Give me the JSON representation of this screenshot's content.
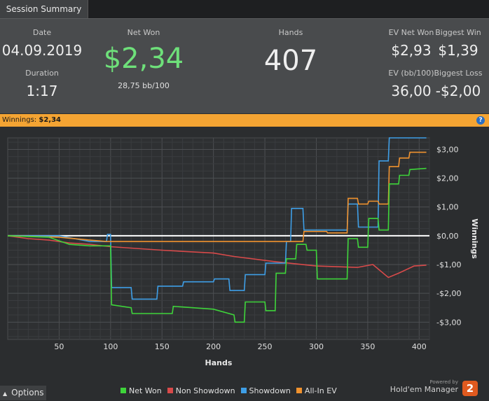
{
  "tab": {
    "label": "Session Summary"
  },
  "summary": {
    "date_label": "Date",
    "date": "04.09.2019",
    "duration_label": "Duration",
    "duration": "1:17",
    "net_won_label": "Net Won",
    "net_won": "$2,34",
    "bb100": "28,75 bb/100",
    "hands_label": "Hands",
    "hands": "407",
    "ev_net_won_label": "EV Net Won",
    "ev_net_won": "$2,93",
    "biggest_win_label": "Biggest Win",
    "biggest_win": "$1,39",
    "ev_bb100_label": "EV (bb/100)",
    "ev_bb100": "36,00",
    "biggest_loss_label": "Biggest Loss",
    "biggest_loss": "-$2,00"
  },
  "banner": {
    "label": "Winnings:",
    "value": "$2,34",
    "help": "?"
  },
  "colors": {
    "net_won": "#3ed43a",
    "non_showdown": "#d84a4a",
    "showdown": "#3e9ee6",
    "all_in_ev": "#f0922e",
    "banner": "#f4a433",
    "accent_green": "#6ee07a"
  },
  "chart_data": {
    "type": "line",
    "xlabel": "Hands",
    "ylabel": "Winnings",
    "xlim": [
      0,
      410
    ],
    "ylim": [
      -3.6,
      3.4
    ],
    "x_ticks": [
      50,
      100,
      150,
      200,
      250,
      300,
      350,
      400
    ],
    "x_tick_labels": [
      "50",
      "100",
      "150",
      "200",
      "250",
      "300",
      "350",
      "400"
    ],
    "y_ticks": [
      3,
      2,
      1,
      0,
      -1,
      -2,
      -3
    ],
    "y_tick_labels": [
      "$3,00",
      "$2,00",
      "$1,00",
      "$0,00",
      "-$1,00",
      "-$2,00",
      "-$3,00"
    ],
    "grid": true,
    "series": [
      {
        "name": "Non Showdown",
        "color": "#d84a4a",
        "points": [
          [
            0,
            0
          ],
          [
            20,
            -0.1
          ],
          [
            40,
            -0.15
          ],
          [
            60,
            -0.25
          ],
          [
            80,
            -0.3
          ],
          [
            100,
            -0.38
          ],
          [
            150,
            -0.5
          ],
          [
            200,
            -0.6
          ],
          [
            220,
            -0.72
          ],
          [
            260,
            -0.9
          ],
          [
            300,
            -1.05
          ],
          [
            340,
            -1.1
          ],
          [
            355,
            -1.0
          ],
          [
            370,
            -1.45
          ],
          [
            380,
            -1.3
          ],
          [
            395,
            -1.05
          ],
          [
            407,
            -1.02
          ]
        ]
      },
      {
        "name": "Showdown",
        "color": "#3e9ee6",
        "points": [
          [
            0,
            0
          ],
          [
            50,
            0
          ],
          [
            80,
            -0.2
          ],
          [
            96,
            -0.2
          ],
          [
            97,
            0.05
          ],
          [
            100,
            0.05
          ],
          [
            101,
            -1.8
          ],
          [
            120,
            -1.8
          ],
          [
            121,
            -2.2
          ],
          [
            145,
            -2.2
          ],
          [
            146,
            -1.75
          ],
          [
            170,
            -1.75
          ],
          [
            171,
            -1.6
          ],
          [
            200,
            -1.6
          ],
          [
            201,
            -1.5
          ],
          [
            215,
            -1.5
          ],
          [
            216,
            -1.9
          ],
          [
            230,
            -1.9
          ],
          [
            231,
            -1.35
          ],
          [
            250,
            -1.35
          ],
          [
            251,
            -0.95
          ],
          [
            270,
            -0.95
          ],
          [
            271,
            -0.2
          ],
          [
            275,
            -0.2
          ],
          [
            276,
            0.95
          ],
          [
            287,
            0.95
          ],
          [
            288,
            0.2
          ],
          [
            330,
            0.2
          ],
          [
            331,
            1.1
          ],
          [
            340,
            1.1
          ],
          [
            341,
            0.3
          ],
          [
            360,
            0.3
          ],
          [
            361,
            2.6
          ],
          [
            370,
            2.6
          ],
          [
            371,
            3.4
          ],
          [
            407,
            3.4
          ]
        ]
      },
      {
        "name": "All-In EV",
        "color": "#f0922e",
        "points": [
          [
            0,
            0
          ],
          [
            50,
            -0.05
          ],
          [
            80,
            -0.15
          ],
          [
            96,
            -0.2
          ],
          [
            100,
            -0.2
          ],
          [
            287,
            -0.2
          ],
          [
            288,
            0.15
          ],
          [
            310,
            0.15
          ],
          [
            311,
            0.1
          ],
          [
            330,
            0.1
          ],
          [
            331,
            1.3
          ],
          [
            340,
            1.3
          ],
          [
            341,
            1.1
          ],
          [
            350,
            1.1
          ],
          [
            351,
            1.2
          ],
          [
            360,
            1.2
          ],
          [
            361,
            1.1
          ],
          [
            370,
            1.1
          ],
          [
            371,
            2.4
          ],
          [
            380,
            2.4
          ],
          [
            381,
            2.7
          ],
          [
            390,
            2.7
          ],
          [
            391,
            2.9
          ],
          [
            407,
            2.9
          ]
        ]
      },
      {
        "name": "Net Won",
        "color": "#3ed43a",
        "points": [
          [
            0,
            0
          ],
          [
            40,
            -0.05
          ],
          [
            60,
            -0.3
          ],
          [
            80,
            -0.35
          ],
          [
            100,
            -0.35
          ],
          [
            101,
            -2.4
          ],
          [
            120,
            -2.5
          ],
          [
            121,
            -2.7
          ],
          [
            160,
            -2.7
          ],
          [
            161,
            -2.45
          ],
          [
            200,
            -2.55
          ],
          [
            220,
            -2.75
          ],
          [
            221,
            -3.0
          ],
          [
            230,
            -3.0
          ],
          [
            231,
            -2.3
          ],
          [
            250,
            -2.3
          ],
          [
            251,
            -2.6
          ],
          [
            260,
            -2.6
          ],
          [
            261,
            -1.3
          ],
          [
            270,
            -1.3
          ],
          [
            271,
            -0.8
          ],
          [
            280,
            -0.8
          ],
          [
            281,
            -0.3
          ],
          [
            290,
            -0.3
          ],
          [
            291,
            -0.5
          ],
          [
            300,
            -0.5
          ],
          [
            301,
            -1.5
          ],
          [
            330,
            -1.5
          ],
          [
            331,
            -0.1
          ],
          [
            340,
            -0.1
          ],
          [
            341,
            -0.4
          ],
          [
            350,
            -0.4
          ],
          [
            351,
            0.6
          ],
          [
            360,
            0.6
          ],
          [
            361,
            0.2
          ],
          [
            370,
            0.2
          ],
          [
            371,
            1.8
          ],
          [
            380,
            1.8
          ],
          [
            381,
            2.1
          ],
          [
            390,
            2.1
          ],
          [
            391,
            2.3
          ],
          [
            407,
            2.34
          ]
        ]
      }
    ]
  },
  "legend": {
    "items": [
      {
        "label": "Net Won",
        "color": "#3ed43a"
      },
      {
        "label": "Non Showdown",
        "color": "#d84a4a"
      },
      {
        "label": "Showdown",
        "color": "#3e9ee6"
      },
      {
        "label": "All-In EV",
        "color": "#f0922e"
      }
    ]
  },
  "options": {
    "label": "Options",
    "arrow": "▲"
  },
  "brand": {
    "powered": "Powered by",
    "name": "Hold'em Manager",
    "badge": "2"
  }
}
